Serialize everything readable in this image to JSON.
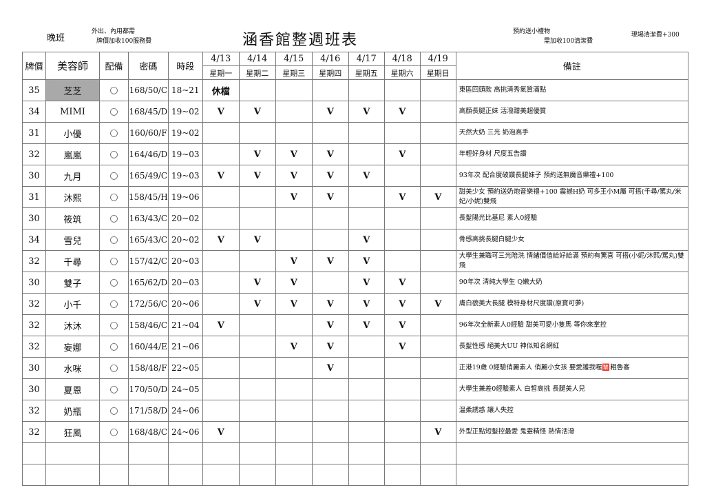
{
  "header": {
    "shift": "晚班",
    "note_left_1": "外出、內用都需",
    "note_left_2": "牌價加收100服務費",
    "title": "涵香館整週班表",
    "note_right_1": "預約送小禮物",
    "note_right_2": "需加收100清潔費",
    "note_far_right": "現場清潔費+300"
  },
  "columns": {
    "price": "牌價",
    "name": "美容師",
    "equip": "配備",
    "code": "密碼",
    "time": "時段",
    "remarks": "備註"
  },
  "days": [
    {
      "date": "4/13",
      "weekday": "星期一"
    },
    {
      "date": "4/14",
      "weekday": "星期二"
    },
    {
      "date": "4/15",
      "weekday": "星期三"
    },
    {
      "date": "4/16",
      "weekday": "星期四"
    },
    {
      "date": "4/17",
      "weekday": "星期五"
    },
    {
      "date": "4/18",
      "weekday": "星期六"
    },
    {
      "date": "4/19",
      "weekday": "星期日"
    }
  ],
  "rows": [
    {
      "price": "35",
      "name": "芝芝",
      "equip": "○",
      "code": "168/50/C",
      "time": "18~21",
      "days": [
        "休檔",
        "",
        "",
        "",
        "",
        "",
        ""
      ],
      "remark": "東區回頭款 高挑清秀氣質滿點",
      "highlight": true
    },
    {
      "price": "34",
      "name": "MIMI",
      "equip": "○",
      "code": "168/45/D",
      "time": "19~02",
      "days": [
        "V",
        "V",
        "",
        "V",
        "V",
        "V",
        ""
      ],
      "remark": "高顏長腿正妹 活潑甜美超優質"
    },
    {
      "price": "31",
      "name": "小優",
      "equip": "○",
      "code": "160/60/F",
      "time": "19~02",
      "days": [
        "",
        "",
        "",
        "",
        "",
        "",
        ""
      ],
      "remark": "天然大奶 三光 奶泡高手"
    },
    {
      "price": "32",
      "name": "嵐嵐",
      "equip": "○",
      "code": "164/46/D",
      "time": "19~03",
      "days": [
        "",
        "V",
        "V",
        "V",
        "",
        "V",
        ""
      ],
      "remark": "年輕好身材 尺度五告讚"
    },
    {
      "price": "30",
      "name": "九月",
      "equip": "○",
      "code": "165/49/C",
      "time": "19~03",
      "days": [
        "V",
        "V",
        "V",
        "V",
        "V",
        "",
        ""
      ],
      "remark": "93年次 配合度破讚長腿妹子 預約送無魔音樂禮+100"
    },
    {
      "price": "31",
      "name": "沐熙",
      "equip": "○",
      "code": "158/45/H",
      "time": "19~06",
      "days": [
        "",
        "",
        "V",
        "V",
        "",
        "V",
        "V"
      ],
      "remark": "甜美少女 預約送奶炮音樂禮+100 震撼H奶 可多王小M屬 可搭(千尋/罵丸/米妃/小妮)雙飛"
    },
    {
      "price": "30",
      "name": "筱筑",
      "equip": "○",
      "code": "163/43/C",
      "time": "20~02",
      "days": [
        "",
        "",
        "",
        "",
        "",
        "",
        ""
      ],
      "remark": "長髮陽光比基尼 素人0經驗"
    },
    {
      "price": "34",
      "name": "雪兒",
      "equip": "○",
      "code": "165/43/C",
      "time": "20~02",
      "days": [
        "V",
        "V",
        "",
        "",
        "V",
        "",
        ""
      ],
      "remark": "骨感高挑長腿白腿少女"
    },
    {
      "price": "32",
      "name": "千尋",
      "equip": "○",
      "code": "157/42/C",
      "time": "20~03",
      "days": [
        "",
        "",
        "V",
        "V",
        "V",
        "",
        ""
      ],
      "remark": "大學生兼職可三光陪洗 情緒價值給好給滿 預約有驚喜 可搭(小妮/沐熙/罵丸)雙飛"
    },
    {
      "price": "30",
      "name": "雙子",
      "equip": "○",
      "code": "165/62/D",
      "time": "20~03",
      "days": [
        "",
        "V",
        "V",
        "",
        "V",
        "V",
        ""
      ],
      "remark": "90年次 清純大學生 Q嫩大奶"
    },
    {
      "price": "32",
      "name": "小千",
      "equip": "○",
      "code": "172/56/C",
      "time": "20~06",
      "days": [
        "",
        "V",
        "V",
        "V",
        "V",
        "V",
        "V"
      ],
      "remark": "膚白貌美大長腿 模特身材尺度讚(原寶可夢)"
    },
    {
      "price": "32",
      "name": "沐沐",
      "equip": "○",
      "code": "158/46/C",
      "time": "21~04",
      "days": [
        "V",
        "",
        "",
        "V",
        "V",
        "V",
        ""
      ],
      "remark": "96年次全新素人0經驗 甜美可愛小隻馬 等你來掌控"
    },
    {
      "price": "32",
      "name": "妄娜",
      "equip": "○",
      "code": "160/44/E",
      "time": "21~06",
      "days": [
        "",
        "",
        "V",
        "V",
        "",
        "V",
        ""
      ],
      "remark": "長髮性感 絕美大UU 神似知名網紅"
    },
    {
      "price": "30",
      "name": "水咪",
      "equip": "○",
      "code": "158/48/F",
      "time": "22~05",
      "days": [
        "",
        "",
        "",
        "V",
        "",
        "",
        ""
      ],
      "remark": "正港19歲 0經驗俏麗素人 俏麗小女孩 要愛護我喔🈲粗魯客"
    },
    {
      "price": "30",
      "name": "夏恩",
      "equip": "○",
      "code": "170/50/D",
      "time": "24~05",
      "days": [
        "",
        "",
        "",
        "",
        "",
        "",
        ""
      ],
      "remark": "大學生兼差0經驗素人 白皙高挑 長腿美人兒"
    },
    {
      "price": "32",
      "name": "奶瓶",
      "equip": "○",
      "code": "171/58/D",
      "time": "24~06",
      "days": [
        "",
        "",
        "",
        "",
        "",
        "",
        ""
      ],
      "remark": "溫柔誘惑 讓人失控"
    },
    {
      "price": "32",
      "name": "狂風",
      "equip": "○",
      "code": "168/48/C",
      "time": "24~06",
      "days": [
        "V",
        "",
        "",
        "",
        "",
        "",
        "V"
      ],
      "remark": "外型正點短髮控最愛 鬼靈精怪 熱情活潑"
    }
  ],
  "empty_rows": 2,
  "colors": {
    "highlight_cell": "#a9a9a9",
    "grid": "#777777"
  }
}
